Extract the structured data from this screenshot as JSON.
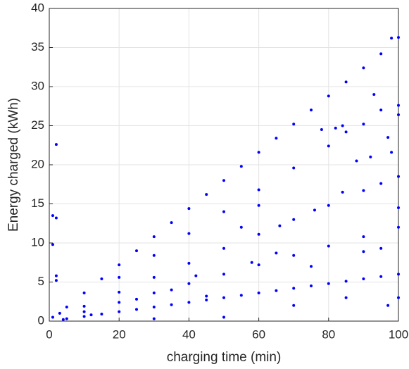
{
  "chart_data": {
    "type": "scatter",
    "xlabel": "charging time (min)",
    "ylabel": "Energy charged (kWh)",
    "color": "#0000ff",
    "grid": true,
    "xlim": [
      0,
      100
    ],
    "xticks": [
      0,
      20,
      40,
      60,
      80,
      100
    ],
    "ylim": [
      0,
      40
    ],
    "yticks": [
      0,
      5,
      10,
      15,
      20,
      25,
      30,
      35,
      40
    ],
    "x": [
      5,
      10,
      15,
      20,
      25,
      30,
      35,
      40,
      45,
      50,
      55,
      60,
      65,
      70,
      75,
      80,
      85,
      90,
      95,
      98,
      100,
      20,
      30,
      40,
      50,
      60,
      70,
      80,
      85,
      90,
      95,
      100,
      10,
      20,
      30,
      40,
      50,
      60,
      70,
      80,
      90,
      95,
      100,
      10,
      20,
      30,
      40,
      50,
      60,
      70,
      80,
      90,
      100,
      5,
      10,
      15,
      20,
      25,
      30,
      35,
      40,
      45,
      50,
      55,
      60,
      65,
      70,
      75,
      80,
      85,
      90,
      95,
      100,
      2,
      1,
      2,
      1,
      2,
      2,
      93,
      98,
      100,
      100,
      82,
      84,
      78,
      88,
      60,
      55,
      65,
      75,
      90,
      95,
      45,
      70,
      85,
      100,
      97,
      30,
      50,
      3,
      1,
      4,
      12,
      25,
      35,
      42,
      58,
      66,
      76,
      84,
      92,
      97
    ],
    "values": [
      1.8,
      3.6,
      5.4,
      7.2,
      9,
      10.8,
      12.6,
      14.4,
      16.2,
      18,
      19.8,
      21.6,
      23.4,
      25.2,
      27,
      28.8,
      30.6,
      32.4,
      34.2,
      36.2,
      36.3,
      5.6,
      8.4,
      11.2,
      14,
      16.8,
      19.6,
      22.4,
      24.2,
      25.2,
      27,
      27.6,
      1.9,
      3.7,
      5.6,
      7.4,
      9.3,
      11.1,
      13,
      14.8,
      16.7,
      17.6,
      18.5,
      1.2,
      2.4,
      3.6,
      4.8,
      6,
      7.2,
      8.4,
      9.6,
      10.8,
      12,
      0.3,
      0.6,
      0.9,
      1.2,
      1.5,
      1.8,
      2.1,
      2.4,
      2.7,
      3,
      3.3,
      3.6,
      3.9,
      4.2,
      4.5,
      4.8,
      5.1,
      5.4,
      5.7,
      6,
      22.6,
      13.5,
      13.2,
      9.8,
      5.8,
      5.2,
      29,
      21.6,
      26.4,
      14.5,
      24.7,
      25,
      24.5,
      20.5,
      14.8,
      12,
      8.7,
      7,
      8.9,
      9.3,
      3.2,
      2,
      3,
      3,
      2,
      0.3,
      0.5,
      1,
      0.5,
      0.2,
      0.8,
      2.8,
      4,
      5.8,
      7.5,
      12.2,
      14.2,
      16.5,
      21,
      23.5
    ]
  }
}
